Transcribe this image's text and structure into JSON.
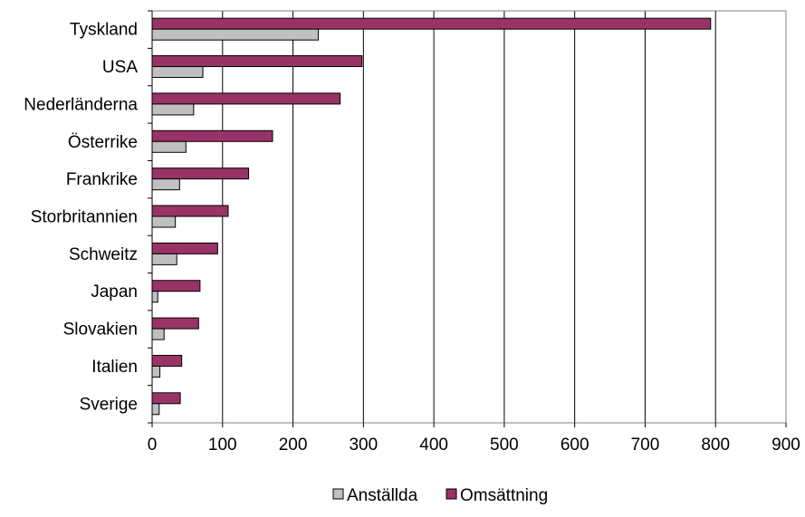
{
  "chart_data": {
    "type": "bar",
    "orientation": "horizontal",
    "categories": [
      "Tyskland",
      "USA",
      "Nederländerna",
      "Österrike",
      "Frankrike",
      "Storbritannien",
      "Schweitz",
      "Japan",
      "Slovakien",
      "Italien",
      "Sverige"
    ],
    "series": [
      {
        "name": "Omsättning",
        "color": "#993366",
        "values": [
          793,
          298,
          267,
          171,
          137,
          108,
          93,
          68,
          66,
          42,
          40
        ]
      },
      {
        "name": "Anställda",
        "color": "#c0c0c0",
        "values": [
          236,
          72,
          59,
          48,
          39,
          33,
          35,
          8,
          17,
          11,
          10
        ]
      }
    ],
    "xlim": [
      0,
      900
    ],
    "xticks": [
      0,
      100,
      200,
      300,
      400,
      500,
      600,
      700,
      800,
      900
    ],
    "grid": true,
    "legend": {
      "position": "bottom",
      "entries": [
        {
          "label": "Anställda",
          "color": "#c0c0c0"
        },
        {
          "label": "Omsättning",
          "color": "#993366"
        }
      ]
    },
    "title": "",
    "xlabel": "",
    "ylabel": ""
  }
}
